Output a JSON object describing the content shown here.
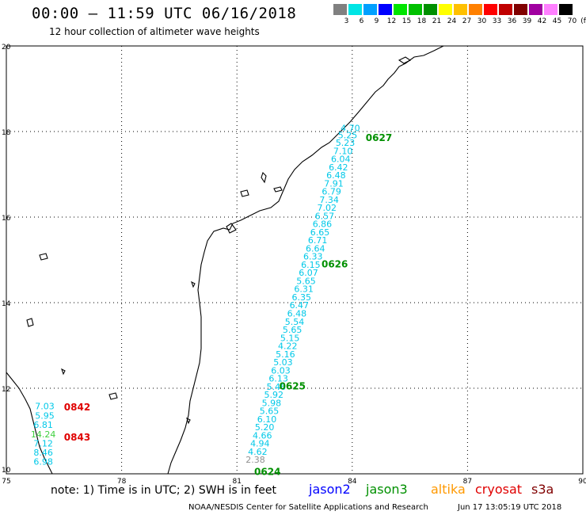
{
  "header": {
    "title": "00:00 – 11:59 UTC 06/16/2018",
    "subtitle": "12 hour collection of altimeter wave heights"
  },
  "color_scale": {
    "unit": "(ft)",
    "bins": [
      {
        "label": "3",
        "color": "#808080"
      },
      {
        "label": "6",
        "color": "#00e5e5"
      },
      {
        "label": "9",
        "color": "#00a0ff"
      },
      {
        "label": "12",
        "color": "#0000ff"
      },
      {
        "label": "15",
        "color": "#00e500"
      },
      {
        "label": "18",
        "color": "#00c000"
      },
      {
        "label": "21",
        "color": "#009000"
      },
      {
        "label": "24",
        "color": "#ffff00"
      },
      {
        "label": "27",
        "color": "#ffc000"
      },
      {
        "label": "30",
        "color": "#ff8000"
      },
      {
        "label": "33",
        "color": "#ff0000"
      },
      {
        "label": "36",
        "color": "#c00000"
      },
      {
        "label": "39",
        "color": "#800000"
      },
      {
        "label": "42",
        "color": "#a000a0"
      },
      {
        "label": "45",
        "color": "#ff80ff"
      },
      {
        "label": "70",
        "color": "#000000"
      }
    ]
  },
  "map": {
    "lon_range": [
      75,
      90
    ],
    "lat_range": [
      10,
      20
    ],
    "lon_ticks": [
      "75",
      "78",
      "81",
      "84",
      "87",
      "90"
    ],
    "lat_ticks": [
      "20",
      "18",
      "16",
      "14",
      "12",
      "10"
    ],
    "tracks": [
      {
        "pass_label": "0627",
        "pass_color": "#009000",
        "label_lon": 84.35,
        "label_lat": 17.85,
        "points": [
          {
            "lon": 83.95,
            "lat": 18.08,
            "swh": "4.70",
            "color": "#00c8e8"
          },
          {
            "lon": 83.88,
            "lat": 17.92,
            "swh": "5.25",
            "color": "#00c8e8"
          },
          {
            "lon": 83.82,
            "lat": 17.74,
            "swh": "5.23",
            "color": "#00c8e8"
          },
          {
            "lon": 83.76,
            "lat": 17.55,
            "swh": "7.10",
            "color": "#00c8e8"
          },
          {
            "lon": 83.7,
            "lat": 17.36,
            "swh": "6.04",
            "color": "#00c8e8"
          },
          {
            "lon": 83.64,
            "lat": 17.17,
            "swh": "6.42",
            "color": "#00c8e8"
          },
          {
            "lon": 83.58,
            "lat": 16.98,
            "swh": "6.48",
            "color": "#00c8e8"
          },
          {
            "lon": 83.52,
            "lat": 16.79,
            "swh": "7.91",
            "color": "#00c8e8"
          },
          {
            "lon": 83.46,
            "lat": 16.6,
            "swh": "6.79",
            "color": "#00c8e8"
          },
          {
            "lon": 83.4,
            "lat": 16.41,
            "swh": "7.34",
            "color": "#00c8e8"
          },
          {
            "lon": 83.34,
            "lat": 16.22,
            "swh": "7.02",
            "color": "#00c8e8"
          },
          {
            "lon": 83.28,
            "lat": 16.03,
            "swh": "6.57",
            "color": "#00c8e8"
          },
          {
            "lon": 83.22,
            "lat": 15.84,
            "swh": "6.86",
            "color": "#00c8e8"
          },
          {
            "lon": 83.16,
            "lat": 15.65,
            "swh": "6.65",
            "color": "#00c8e8"
          },
          {
            "lon": 83.1,
            "lat": 15.46,
            "swh": "6.71",
            "color": "#00c8e8"
          },
          {
            "lon": 83.04,
            "lat": 15.27,
            "swh": "6.64",
            "color": "#00c8e8"
          }
        ]
      },
      {
        "pass_label": "0626",
        "pass_color": "#009000",
        "label_lon": 83.2,
        "label_lat": 14.9,
        "points": [
          {
            "lon": 82.98,
            "lat": 15.08,
            "swh": "6.33",
            "color": "#00c8e8"
          },
          {
            "lon": 82.92,
            "lat": 14.89,
            "swh": "6.15",
            "color": "#00c8e8"
          },
          {
            "lon": 82.86,
            "lat": 14.7,
            "swh": "6.07",
            "color": "#00c8e8"
          },
          {
            "lon": 82.8,
            "lat": 14.51,
            "swh": "5.65",
            "color": "#00c8e8"
          },
          {
            "lon": 82.74,
            "lat": 14.32,
            "swh": "6.31",
            "color": "#00c8e8"
          },
          {
            "lon": 82.68,
            "lat": 14.13,
            "swh": "6.35",
            "color": "#00c8e8"
          },
          {
            "lon": 82.62,
            "lat": 13.94,
            "swh": "6.47",
            "color": "#00c8e8"
          },
          {
            "lon": 82.56,
            "lat": 13.75,
            "swh": "6.48",
            "color": "#00c8e8"
          },
          {
            "lon": 82.5,
            "lat": 13.56,
            "swh": "5.54",
            "color": "#00c8e8"
          },
          {
            "lon": 82.44,
            "lat": 13.37,
            "swh": "5.65",
            "color": "#00c8e8"
          },
          {
            "lon": 82.38,
            "lat": 13.18,
            "swh": "5.15",
            "color": "#00c8e8"
          },
          {
            "lon": 82.32,
            "lat": 12.99,
            "swh": "4.22",
            "color": "#00c8e8"
          },
          {
            "lon": 82.26,
            "lat": 12.8,
            "swh": "5.16",
            "color": "#00c8e8"
          },
          {
            "lon": 82.2,
            "lat": 12.61,
            "swh": "5.03",
            "color": "#00c8e8"
          },
          {
            "lon": 82.14,
            "lat": 12.42,
            "swh": "6.03",
            "color": "#00c8e8"
          },
          {
            "lon": 82.08,
            "lat": 12.23,
            "swh": "6.13",
            "color": "#00c8e8"
          }
        ]
      },
      {
        "pass_label": "0625",
        "pass_color": "#009000",
        "label_lon": 82.1,
        "label_lat": 12.05,
        "points": [
          {
            "lon": 82.02,
            "lat": 12.04,
            "swh": "5.46",
            "color": "#00c8e8"
          },
          {
            "lon": 81.96,
            "lat": 11.85,
            "swh": "5.92",
            "color": "#00c8e8"
          },
          {
            "lon": 81.9,
            "lat": 11.66,
            "swh": "5.98",
            "color": "#00c8e8"
          },
          {
            "lon": 81.84,
            "lat": 11.47,
            "swh": "5.65",
            "color": "#00c8e8"
          },
          {
            "lon": 81.78,
            "lat": 11.28,
            "swh": "6.10",
            "color": "#00c8e8"
          },
          {
            "lon": 81.72,
            "lat": 11.09,
            "swh": "5.20",
            "color": "#00c8e8"
          },
          {
            "lon": 81.66,
            "lat": 10.9,
            "swh": "4.66",
            "color": "#00c8e8"
          },
          {
            "lon": 81.6,
            "lat": 10.71,
            "swh": "4.94",
            "color": "#00c8e8"
          },
          {
            "lon": 81.54,
            "lat": 10.52,
            "swh": "4.62",
            "color": "#00c8e8"
          },
          {
            "lon": 81.48,
            "lat": 10.33,
            "swh": "2.38",
            "color": "#909090"
          }
        ]
      },
      {
        "pass_label": "0624",
        "pass_color": "#009000",
        "label_lon": 81.45,
        "label_lat": 10.05,
        "points": []
      },
      {
        "pass_label": "0842",
        "pass_color": "#e00000",
        "label_lon": 76.5,
        "label_lat": 11.56,
        "points": [
          {
            "lon": 76.0,
            "lat": 11.58,
            "swh": "7.03",
            "color": "#00c8e8"
          },
          {
            "lon": 76.0,
            "lat": 11.36,
            "swh": "5.95",
            "color": "#00c8e8"
          },
          {
            "lon": 75.96,
            "lat": 11.15,
            "swh": "6.81",
            "color": "#00c8e8"
          }
        ]
      },
      {
        "pass_label": "0843",
        "pass_color": "#e00000",
        "label_lon": 76.5,
        "label_lat": 10.85,
        "points": [
          {
            "lon": 75.96,
            "lat": 10.93,
            "swh": "14.24",
            "color": "#40d040"
          },
          {
            "lon": 75.96,
            "lat": 10.71,
            "swh": "7.12",
            "color": "#00c8e8"
          },
          {
            "lon": 75.96,
            "lat": 10.5,
            "swh": "8.46",
            "color": "#00c8e8"
          },
          {
            "lon": 75.96,
            "lat": 10.29,
            "swh": "6.98",
            "color": "#00c8e8"
          }
        ]
      }
    ]
  },
  "footer": {
    "note": "note: 1) Time is in UTC; 2) SWH is in feet",
    "satellites": [
      {
        "name": "jason2",
        "color": "#0000ff"
      },
      {
        "name": "jason3",
        "color": "#009000"
      },
      {
        "name": "altika",
        "color": "#ff9900"
      },
      {
        "name": "cryosat",
        "color": "#e00000"
      },
      {
        "name": "s3a",
        "color": "#800000"
      }
    ],
    "credit": "NOAA/NESDIS Center for Satellite Applications and Research",
    "timestamp": "Jun 17 13:05:19 UTC 2018"
  }
}
